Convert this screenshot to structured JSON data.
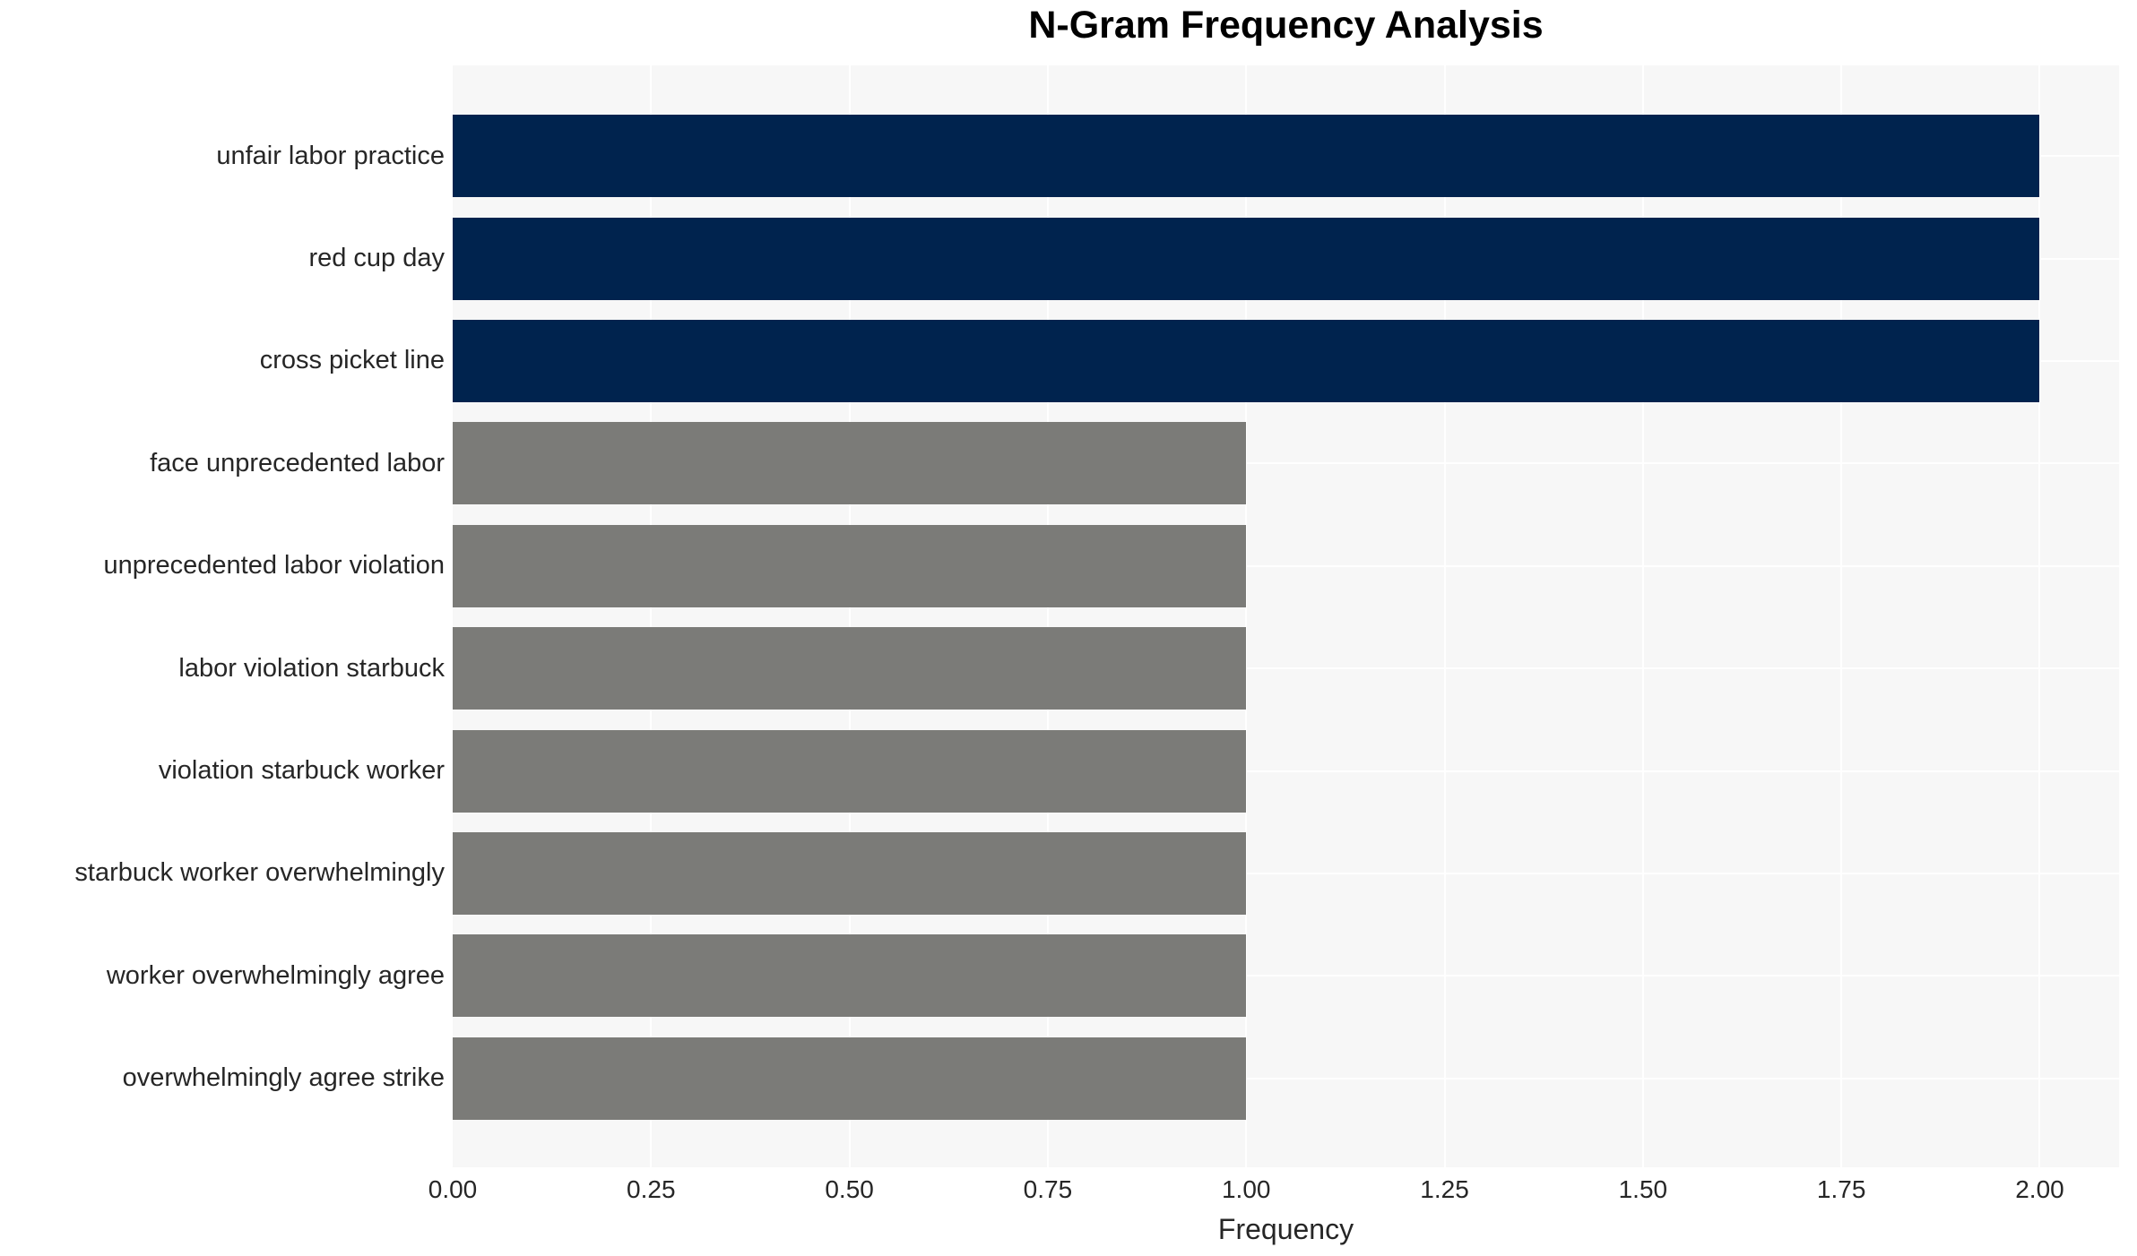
{
  "title": "N-Gram Frequency Analysis",
  "chart_data": {
    "type": "bar",
    "orientation": "horizontal",
    "title": "N-Gram Frequency Analysis",
    "categories": [
      "unfair labor practice",
      "red cup day",
      "cross picket line",
      "face unprecedented labor",
      "unprecedented labor violation",
      "labor violation starbuck",
      "violation starbuck worker",
      "starbuck worker overwhelmingly",
      "worker overwhelmingly agree",
      "overwhelmingly agree strike"
    ],
    "values": [
      2,
      2,
      2,
      1,
      1,
      1,
      1,
      1,
      1,
      1
    ],
    "bar_colors": [
      "#00234e",
      "#00234e",
      "#00234e",
      "#7b7b78",
      "#7b7b78",
      "#7b7b78",
      "#7b7b78",
      "#7b7b78",
      "#7b7b78",
      "#7b7b78"
    ],
    "xlabel": "Frequency",
    "ylabel": "",
    "xlim": [
      0,
      2.1
    ],
    "xticks": [
      "0.00",
      "0.25",
      "0.50",
      "0.75",
      "1.00",
      "1.25",
      "1.50",
      "1.75",
      "2.00"
    ],
    "xtick_values": [
      0,
      0.25,
      0.5,
      0.75,
      1.0,
      1.25,
      1.5,
      1.75,
      2.0
    ],
    "grid": true,
    "legend": "none",
    "plot_background": "#f7f7f7",
    "grid_color": "#ffffff",
    "highlight_color": "#00234e",
    "base_color": "#7b7b78",
    "text_color": "#262626"
  }
}
